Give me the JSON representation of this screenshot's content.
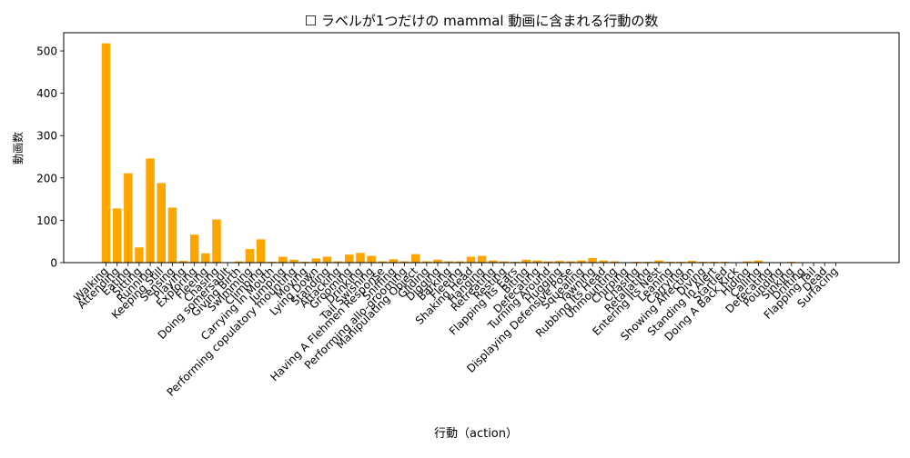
{
  "chart_data": {
    "type": "bar",
    "title": "☐ ラベルが1つだけの mammal 動画に含まれる行動の数",
    "xlabel": "行動（action）",
    "ylabel": "動画数",
    "ylim": [
      0,
      543
    ],
    "yticks": [
      0,
      100,
      200,
      300,
      400,
      500
    ],
    "grid": false,
    "bar_color": "#ffa500",
    "categories": [
      "Walking",
      "Attending",
      "Eating",
      "Sitting",
      "Running",
      "Keeping Still",
      "Sensing",
      "Playing",
      "Exploring",
      "Fleeing",
      "Chasing",
      "Doing somersault",
      "Giving Birth",
      "Swimming",
      "Climbing",
      "Carrying In Mouth",
      "Jumping",
      "Performing copulatory mounting",
      "Moving",
      "Lying Down",
      "Standing",
      "Attacking",
      "Grooming",
      "Drinking",
      "Tail Swishing",
      "Having A Flehmen Response",
      "Sniffing",
      "Performing allo-grooming",
      "Manipulating Object",
      "Gliding",
      "Digging",
      "Barking",
      "Fleeing",
      "Shaking Head",
      "Hanging",
      "Retreating",
      "Resting",
      "Flapping Its Ears",
      "Biting",
      "Defecating",
      "Turning Around",
      "Hugging",
      "Displaying Defensive Pose",
      "Squealing",
      "Yawning",
      "Rubbing Its Head",
      "Unmounting",
      "Chirping",
      "Chasing",
      "Retaliating",
      "Entering Its Nest",
      "Leaning",
      "Carrying",
      "Showing Affection",
      "Diving",
      "Standing In Alert",
      "Startled",
      "Doing A Back Kick",
      "Hiding",
      "Calling",
      "Defecating",
      "Pounding",
      "Sinking",
      "Drifting",
      "Flapping Tail",
      "Dead",
      "Surfacing"
    ],
    "values": [
      518,
      128,
      211,
      36,
      246,
      188,
      130,
      4,
      66,
      22,
      102,
      1,
      3,
      32,
      55,
      2,
      14,
      7,
      2,
      10,
      14,
      3,
      19,
      23,
      16,
      3,
      8,
      3,
      20,
      3,
      7,
      3,
      3,
      14,
      16,
      5,
      3,
      2,
      7,
      5,
      3,
      4,
      3,
      5,
      11,
      5,
      3,
      1,
      2,
      2,
      5,
      2,
      2,
      4,
      2,
      2,
      2,
      1,
      3,
      5,
      1,
      1,
      2,
      1,
      1,
      1,
      1
    ]
  }
}
